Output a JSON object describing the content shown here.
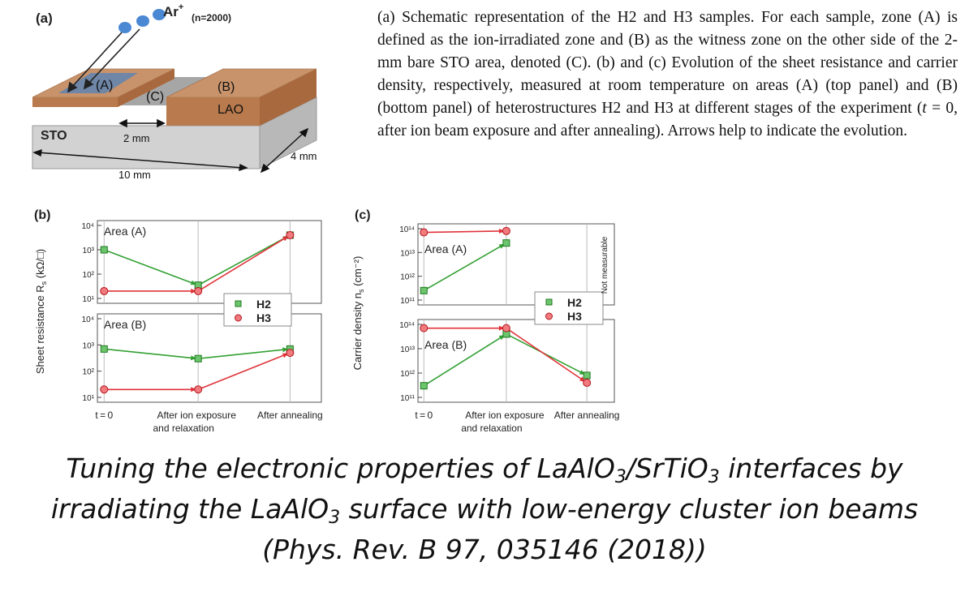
{
  "panel_a": {
    "label": "(a)",
    "ion_label": "Ar",
    "ion_sup": "+",
    "ion_count": "(n=2000)",
    "zone_a": "(A)",
    "zone_b": "(B)",
    "zone_c": "(C)",
    "lao": "LAO",
    "sto": "STO",
    "dim_gap": "2 mm",
    "dim_width": "4 mm",
    "dim_length": "10 mm",
    "colors": {
      "lao_top": "#c8936a",
      "lao_side": "#b97a4d",
      "sto_top": "#a6a6a6",
      "sto_front": "#d2d2d2",
      "sto_side": "#b8b8b8",
      "irradiated": "#6f86a6",
      "ion": "#4a88d4"
    }
  },
  "caption": {
    "text": "(a) Schematic representation of the H2 and H3 samples. For each sample, zone (A) is defined as the ion-irradiated zone and (B) as the witness zone on the other side of the 2-mm bare STO area, denoted (C). (b) and (c) Evolution of the sheet resistance and carrier density, respectively, measured at room temperature on areas (A) (top panel) and (B) (bottom panel) of heterostructures H2 and H3 at different stages of the experiment (",
    "t_symbol": "t",
    "text_end": " = 0, after ion beam exposure and after annealing). Arrows help to indicate the evolution."
  },
  "title": {
    "line1_a": "Tuning the electronic properties of LaAlO",
    "line1_sub1": "3",
    "line1_b": "/SrTiO",
    "line1_sub2": "3",
    "line1_c": " interfaces by",
    "line2_a": "irradiating the LaAlO",
    "line2_sub": "3",
    "line2_b": " surface with low-energy cluster ion beams",
    "line3": "(Phys. Rev. B 97, 035146 (2018))"
  },
  "chart_data": [
    {
      "panel": "(b)",
      "type": "line",
      "scale": "log",
      "ylabel": "Sheet resistance R",
      "ylabel_sub": "s",
      "ylabel_unit": " (kΩ/□)",
      "categories": [
        "t = 0",
        "After ion exposure and relaxation",
        "After annealing"
      ],
      "tick_labels": [
        "t = 0",
        "After ion exposure",
        "and relaxation",
        "After annealing"
      ],
      "legend": [
        "H2",
        "H3"
      ],
      "colors": {
        "H2": "#33a033",
        "H3": "#e0333a"
      },
      "subpanels": [
        {
          "name": "Area (A)",
          "ylim": [
            10,
            10000
          ],
          "yticks": [
            "10¹",
            "10²",
            "10³",
            "10⁴"
          ],
          "series": [
            {
              "name": "H2",
              "values": [
                1000,
                35,
                4000
              ]
            },
            {
              "name": "H3",
              "values": [
                20,
                20,
                4000
              ]
            }
          ]
        },
        {
          "name": "Area (B)",
          "ylim": [
            10,
            10000
          ],
          "yticks": [
            "10¹",
            "10²",
            "10³",
            "10⁴"
          ],
          "series": [
            {
              "name": "H2",
              "values": [
                700,
                300,
                700
              ]
            },
            {
              "name": "H3",
              "values": [
                20,
                20,
                500
              ]
            }
          ]
        }
      ]
    },
    {
      "panel": "(c)",
      "type": "line",
      "scale": "log",
      "ylabel": "Carrier density n",
      "ylabel_sub": "s",
      "ylabel_unit": " (cm⁻²)",
      "categories": [
        "t = 0",
        "After ion exposure and relaxation",
        "After annealing"
      ],
      "tick_labels": [
        "t = 0",
        "After ion exposure",
        "and relaxation",
        "After annealing"
      ],
      "legend": [
        "H2",
        "H3"
      ],
      "annotation": "Not measurable",
      "colors": {
        "H2": "#33a033",
        "H3": "#e0333a"
      },
      "subpanels": [
        {
          "name": "Area (A)",
          "ylim": [
            100000000000,
            100000000000000
          ],
          "yticks": [
            "10¹¹",
            "10¹²",
            "10¹³",
            "10¹⁴"
          ],
          "series": [
            {
              "name": "H2",
              "values": [
                250000000000,
                25000000000000,
                null
              ]
            },
            {
              "name": "H3",
              "values": [
                70000000000000,
                80000000000000,
                null
              ]
            }
          ]
        },
        {
          "name": "Area (B)",
          "ylim": [
            100000000000,
            100000000000000
          ],
          "yticks": [
            "10¹¹",
            "10¹²",
            "10¹³",
            "10¹⁴"
          ],
          "series": [
            {
              "name": "H2",
              "values": [
                300000000000,
                40000000000000,
                800000000000
              ]
            },
            {
              "name": "H3",
              "values": [
                70000000000000,
                70000000000000,
                400000000000
              ]
            }
          ]
        }
      ]
    }
  ]
}
